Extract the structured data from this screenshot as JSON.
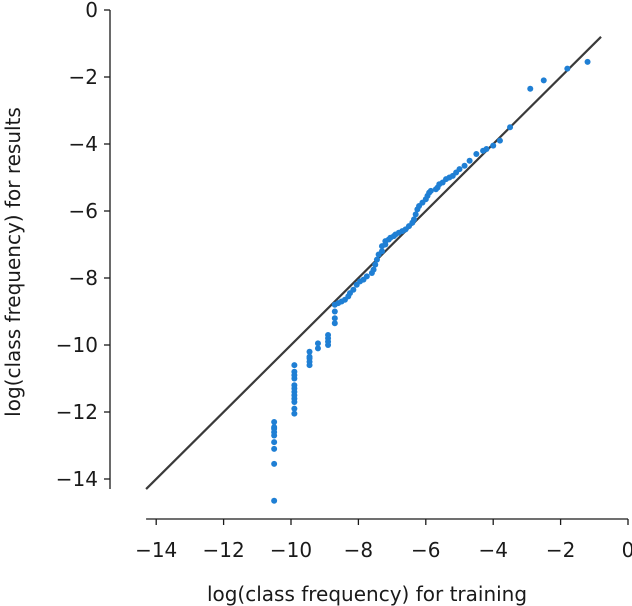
{
  "chart_data": {
    "type": "scatter",
    "title": "",
    "xlabel": "log(class frequency) for training",
    "ylabel": "log(class frequency) for results",
    "xlim": [
      -14.3,
      0
    ],
    "ylim": [
      -14.3,
      0
    ],
    "xticks": [
      -14,
      -12,
      -10,
      -8,
      -6,
      -4,
      -2,
      0
    ],
    "yticks": [
      -14,
      -12,
      -10,
      -8,
      -6,
      -4,
      -2,
      0
    ],
    "xtick_labels": [
      "−14",
      "−12",
      "−10",
      "−8",
      "−6",
      "−4",
      "−2",
      "0"
    ],
    "ytick_labels": [
      "−14",
      "−12",
      "−10",
      "−8",
      "−6",
      "−4",
      "−2",
      "0"
    ],
    "grid": false,
    "reference_line": {
      "x": [
        -14.3,
        -0.8
      ],
      "y": [
        -14.3,
        -0.8
      ],
      "color": "#3a3a3a"
    },
    "point_color": "#1f7fd4",
    "series": [
      {
        "x": [
          -10.5,
          -10.5,
          -10.5,
          -10.5,
          -10.5,
          -10.5,
          -10.5,
          -10.5,
          -10.5,
          -9.9,
          -9.9,
          -9.9,
          -9.9,
          -9.9,
          -9.9,
          -9.9,
          -9.9,
          -9.9,
          -9.9,
          -9.9,
          -9.9,
          -9.45,
          -9.45,
          -9.45,
          -9.45,
          -9.45,
          -9.2,
          -9.2,
          -8.9,
          -8.9,
          -8.9,
          -8.9,
          -8.7,
          -8.7,
          -8.7,
          -8.7,
          -8.6,
          -8.5,
          -8.4,
          -8.3,
          -8.25,
          -8.15,
          -8.05,
          -7.95,
          -7.85,
          -7.75,
          -7.6,
          -7.55,
          -7.5,
          -7.45,
          -7.4,
          -7.3,
          -7.3,
          -7.2,
          -7.2,
          -7.1,
          -7.05,
          -6.95,
          -6.9,
          -6.8,
          -6.7,
          -6.6,
          -6.5,
          -6.4,
          -6.35,
          -6.3,
          -6.25,
          -6.2,
          -6.1,
          -6.0,
          -5.95,
          -5.9,
          -5.85,
          -5.7,
          -5.65,
          -5.6,
          -5.5,
          -5.4,
          -5.3,
          -5.2,
          -5.1,
          -5.0,
          -4.85,
          -4.7,
          -4.5,
          -4.3,
          -4.2,
          -4.0,
          -3.8,
          -3.5,
          -2.9,
          -2.5,
          -1.8,
          -1.2
        ],
        "y": [
          -12.3,
          -12.5,
          -12.7,
          -12.9,
          -13.1,
          -13.55,
          -14.65,
          -12.45,
          -12.6,
          -10.6,
          -10.8,
          -11.0,
          -11.2,
          -11.4,
          -11.5,
          -11.6,
          -11.7,
          -11.9,
          -12.05,
          -11.3,
          -10.9,
          -10.2,
          -10.35,
          -10.5,
          -10.6,
          -10.4,
          -10.1,
          -9.95,
          -9.7,
          -9.8,
          -9.9,
          -10.0,
          -9.0,
          -9.2,
          -9.35,
          -8.8,
          -8.75,
          -8.7,
          -8.65,
          -8.55,
          -8.45,
          -8.35,
          -8.2,
          -8.1,
          -8.05,
          -7.95,
          -7.85,
          -7.75,
          -7.6,
          -7.45,
          -7.3,
          -7.2,
          -7.05,
          -7.0,
          -6.9,
          -6.85,
          -6.8,
          -6.75,
          -6.7,
          -6.65,
          -6.6,
          -6.55,
          -6.45,
          -6.35,
          -6.25,
          -6.1,
          -5.95,
          -5.85,
          -5.75,
          -5.65,
          -5.55,
          -5.45,
          -5.4,
          -5.35,
          -5.3,
          -5.2,
          -5.15,
          -5.05,
          -5.0,
          -4.95,
          -4.85,
          -4.75,
          -4.65,
          -4.5,
          -4.3,
          -4.2,
          -4.15,
          -4.05,
          -3.9,
          -3.5,
          -2.35,
          -2.1,
          -1.75,
          -1.55
        ]
      }
    ]
  }
}
